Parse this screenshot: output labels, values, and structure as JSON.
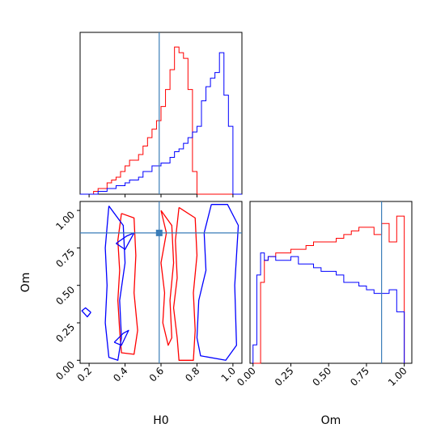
{
  "chart_data": {
    "type": "corner",
    "parameters": [
      "H0",
      "Om"
    ],
    "truths": {
      "H0": 0.59,
      "Om": 0.85
    },
    "colors": {
      "series_a": "#ff0000",
      "series_b": "#0000ff",
      "truth": "#3a7db8"
    },
    "panels": [
      {
        "id": "hist-H0",
        "type": "step-histogram",
        "x": "H0",
        "xlim": [
          0.15,
          1.05
        ],
        "x_ticks": [
          0.2,
          0.4,
          0.6,
          0.8,
          1.0
        ],
        "bin_edges": [
          0.15,
          0.175,
          0.2,
          0.225,
          0.25,
          0.275,
          0.3,
          0.325,
          0.35,
          0.375,
          0.4,
          0.425,
          0.45,
          0.475,
          0.5,
          0.525,
          0.55,
          0.575,
          0.6,
          0.625,
          0.65,
          0.675,
          0.7,
          0.725,
          0.75,
          0.775,
          0.8,
          0.825,
          0.85,
          0.875,
          0.9,
          0.925,
          0.95,
          0.975,
          1.0,
          1.025,
          1.05
        ],
        "series": [
          {
            "color_key": "series_a",
            "counts": [
              0,
              0,
              0,
              1,
              2,
              2,
              4,
              5,
              6,
              8,
              10,
              12,
              12,
              14,
              17,
              20,
              23,
              26,
              31,
              37,
              44,
              52,
              50,
              48,
              37,
              8,
              0,
              0,
              0,
              0,
              0,
              0,
              0,
              0,
              0,
              0
            ]
          },
          {
            "color_key": "series_b",
            "counts": [
              0,
              0,
              0,
              0,
              1,
              1,
              2,
              2,
              3,
              3,
              4,
              5,
              5,
              6,
              8,
              8,
              10,
              10,
              11,
              11,
              13,
              15,
              16,
              18,
              20,
              22,
              24,
              33,
              38,
              41,
              43,
              50,
              35,
              24,
              0,
              0
            ]
          }
        ]
      },
      {
        "id": "contour-H0-Om",
        "type": "contour",
        "x": "H0",
        "y": "Om",
        "xlim": [
          0.15,
          1.05
        ],
        "ylim": [
          -0.02,
          1.06
        ],
        "x_ticks": [
          0.2,
          0.4,
          0.6,
          0.8,
          1.0
        ],
        "y_ticks": [
          0.0,
          0.25,
          0.5,
          0.75,
          1.0
        ],
        "y_tick_labels": [
          "0.00",
          "0.25",
          "0.50",
          "0.75",
          "1.00"
        ],
        "x_label": "H0",
        "y_label": "Om",
        "contours": [
          {
            "color_key": "series_a",
            "points": [
              [
                0.38,
                0.98
              ],
              [
                0.36,
                0.8
              ],
              [
                0.37,
                0.6
              ],
              [
                0.36,
                0.4
              ],
              [
                0.37,
                0.2
              ],
              [
                0.38,
                0.05
              ],
              [
                0.45,
                0.04
              ],
              [
                0.47,
                0.2
              ],
              [
                0.45,
                0.45
              ],
              [
                0.46,
                0.7
              ],
              [
                0.45,
                0.95
              ],
              [
                0.38,
                0.98
              ]
            ]
          },
          {
            "color_key": "series_a",
            "points": [
              [
                0.7,
                1.02
              ],
              [
                0.68,
                0.8
              ],
              [
                0.69,
                0.55
              ],
              [
                0.67,
                0.35
              ],
              [
                0.69,
                0.15
              ],
              [
                0.7,
                0.0
              ],
              [
                0.78,
                0.0
              ],
              [
                0.79,
                0.2
              ],
              [
                0.78,
                0.45
              ],
              [
                0.8,
                0.7
              ],
              [
                0.79,
                0.95
              ],
              [
                0.7,
                1.02
              ]
            ]
          },
          {
            "color_key": "series_a",
            "points": [
              [
                0.6,
                1.0
              ],
              [
                0.63,
                0.85
              ],
              [
                0.6,
                0.65
              ],
              [
                0.62,
                0.45
              ],
              [
                0.61,
                0.25
              ],
              [
                0.64,
                0.1
              ],
              [
                0.66,
                0.15
              ],
              [
                0.65,
                0.4
              ],
              [
                0.67,
                0.65
              ],
              [
                0.66,
                0.9
              ],
              [
                0.6,
                1.0
              ]
            ]
          },
          {
            "color_key": "series_b",
            "points": [
              [
                0.31,
                1.03
              ],
              [
                0.29,
                0.75
              ],
              [
                0.3,
                0.5
              ],
              [
                0.29,
                0.25
              ],
              [
                0.31,
                0.02
              ],
              [
                0.36,
                0.0
              ],
              [
                0.38,
                0.15
              ],
              [
                0.37,
                0.4
              ],
              [
                0.4,
                0.65
              ],
              [
                0.39,
                0.9
              ],
              [
                0.31,
                1.03
              ]
            ]
          },
          {
            "color_key": "series_b",
            "points": [
              [
                0.88,
                1.04
              ],
              [
                0.84,
                0.85
              ],
              [
                0.85,
                0.6
              ],
              [
                0.81,
                0.4
              ],
              [
                0.8,
                0.15
              ],
              [
                0.82,
                0.03
              ],
              [
                0.96,
                0.0
              ],
              [
                1.02,
                0.1
              ],
              [
                1.01,
                0.5
              ],
              [
                1.03,
                0.9
              ],
              [
                0.97,
                1.04
              ],
              [
                0.88,
                1.04
              ]
            ]
          },
          {
            "color_key": "series_b",
            "points": [
              [
                0.21,
                0.32
              ],
              [
                0.18,
                0.35
              ],
              [
                0.16,
                0.33
              ],
              [
                0.19,
                0.29
              ],
              [
                0.21,
                0.32
              ]
            ]
          },
          {
            "color_key": "series_b",
            "points": [
              [
                0.35,
                0.78
              ],
              [
                0.41,
                0.83
              ],
              [
                0.45,
                0.85
              ],
              [
                0.4,
                0.74
              ],
              [
                0.35,
                0.78
              ]
            ]
          },
          {
            "color_key": "series_b",
            "points": [
              [
                0.34,
                0.12
              ],
              [
                0.39,
                0.18
              ],
              [
                0.42,
                0.2
              ],
              [
                0.38,
                0.1
              ],
              [
                0.34,
                0.12
              ]
            ]
          }
        ]
      },
      {
        "id": "hist-Om",
        "type": "step-histogram",
        "x": "Om",
        "xlim": [
          -0.02,
          1.05
        ],
        "x_ticks": [
          0.0,
          0.25,
          0.5,
          0.75,
          1.0
        ],
        "x_tick_labels": [
          "0.00",
          "0.25",
          "0.50",
          "0.75",
          "1.00"
        ],
        "x_label": "Om",
        "bin_edges": [
          0.0,
          0.025,
          0.05,
          0.075,
          0.1,
          0.15,
          0.2,
          0.25,
          0.3,
          0.35,
          0.4,
          0.45,
          0.5,
          0.55,
          0.6,
          0.65,
          0.7,
          0.75,
          0.8,
          0.85,
          0.9,
          0.95,
          1.0
        ],
        "series": [
          {
            "color_key": "series_a",
            "counts": [
              0,
              0,
              22,
              28,
              29,
              30,
              30,
              31,
              31,
              32,
              33,
              33,
              33,
              34,
              35,
              36,
              37,
              37,
              35,
              38,
              33,
              40
            ]
          },
          {
            "color_key": "series_b",
            "counts": [
              5,
              24,
              30,
              28,
              29,
              28,
              28,
              29,
              27,
              27,
              26,
              25,
              25,
              24,
              22,
              22,
              21,
              20,
              19,
              19,
              20,
              14
            ]
          }
        ]
      }
    ]
  }
}
